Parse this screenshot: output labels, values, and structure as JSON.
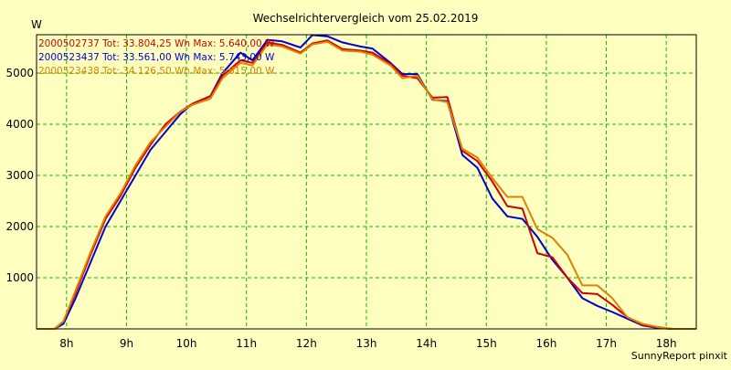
{
  "chart_data": {
    "type": "line",
    "title": "Wechselrichtervergleich vom 25.02.2019",
    "ylabel": "W",
    "xlabel": "",
    "xlim": [
      7.5,
      18.5
    ],
    "ylim": [
      0,
      5750
    ],
    "x_ticks": [
      8,
      9,
      10,
      11,
      12,
      13,
      14,
      15,
      16,
      17,
      18
    ],
    "x_tick_labels": [
      "8h",
      "9h",
      "10h",
      "11h",
      "12h",
      "13h",
      "14h",
      "15h",
      "16h",
      "17h",
      "18h"
    ],
    "y_ticks": [
      1000,
      2000,
      3000,
      4000,
      5000
    ],
    "y_tick_labels": [
      "1000",
      "2000",
      "3000",
      "4000",
      "5000"
    ],
    "grid": true,
    "legend_position": "top-left",
    "footer": "SunnyReport pinxit",
    "series": [
      {
        "name": "2000502737 Tot: 33.804,25 Wh Max: 5.640,00 W",
        "color": "#d00000",
        "x": [
          7.5,
          7.8,
          7.95,
          8.15,
          8.4,
          8.65,
          8.9,
          9.15,
          9.4,
          9.65,
          9.9,
          10.1,
          10.4,
          10.6,
          10.9,
          11.1,
          11.35,
          11.6,
          11.9,
          12.1,
          12.35,
          12.6,
          12.9,
          13.1,
          13.4,
          13.6,
          13.85,
          14.1,
          14.35,
          14.6,
          14.85,
          15.1,
          15.35,
          15.6,
          15.85,
          16.1,
          16.35,
          16.6,
          16.85,
          17.1,
          17.35,
          17.6,
          17.85,
          18.1,
          18.3,
          18.5
        ],
        "y": [
          0,
          0,
          150,
          700,
          1450,
          2150,
          2600,
          3150,
          3600,
          4000,
          4250,
          4400,
          4550,
          4950,
          5250,
          5200,
          5600,
          5550,
          5400,
          5580,
          5640,
          5470,
          5440,
          5400,
          5180,
          4950,
          4900,
          4520,
          4530,
          3480,
          3280,
          2880,
          2400,
          2350,
          1480,
          1400,
          1000,
          700,
          680,
          470,
          230,
          80,
          30,
          0,
          0,
          0
        ]
      },
      {
        "name": "2000523437 Tot: 33.561,00 Wh Max: 5.743,00 W",
        "color": "#0000d0",
        "x": [
          7.5,
          7.8,
          7.95,
          8.15,
          8.4,
          8.65,
          8.9,
          9.15,
          9.4,
          9.65,
          9.9,
          10.1,
          10.4,
          10.6,
          10.9,
          11.1,
          11.35,
          11.6,
          11.9,
          12.1,
          12.35,
          12.6,
          12.9,
          13.1,
          13.4,
          13.6,
          13.85,
          14.1,
          14.35,
          14.6,
          14.85,
          15.1,
          15.35,
          15.6,
          15.85,
          16.1,
          16.35,
          16.6,
          16.85,
          17.1,
          17.35,
          17.6,
          17.85,
          18.1,
          18.3,
          18.5
        ],
        "y": [
          0,
          0,
          100,
          600,
          1300,
          2000,
          2500,
          3000,
          3500,
          3850,
          4200,
          4400,
          4550,
          5000,
          5400,
          5250,
          5650,
          5620,
          5500,
          5743,
          5720,
          5600,
          5520,
          5480,
          5200,
          4980,
          4980,
          4480,
          4450,
          3400,
          3150,
          2550,
          2200,
          2150,
          1800,
          1350,
          1000,
          600,
          450,
          330,
          200,
          70,
          20,
          0,
          0,
          0
        ]
      },
      {
        "name": "2000523438 Tot: 34.126,50 Wh Max: 5.615,00 W",
        "color": "#e08000",
        "x": [
          7.5,
          7.8,
          7.95,
          8.15,
          8.4,
          8.65,
          8.9,
          9.15,
          9.4,
          9.65,
          9.9,
          10.1,
          10.4,
          10.6,
          10.9,
          11.1,
          11.35,
          11.6,
          11.9,
          12.1,
          12.35,
          12.6,
          12.9,
          13.1,
          13.4,
          13.6,
          13.85,
          14.1,
          14.35,
          14.6,
          14.85,
          15.1,
          15.35,
          15.6,
          15.85,
          16.1,
          16.35,
          16.6,
          16.85,
          17.1,
          17.35,
          17.6,
          17.85,
          18.1,
          18.3,
          18.5
        ],
        "y": [
          0,
          0,
          150,
          750,
          1500,
          2200,
          2650,
          3200,
          3650,
          3950,
          4250,
          4380,
          4500,
          4900,
          5200,
          5150,
          5560,
          5520,
          5380,
          5560,
          5615,
          5440,
          5420,
          5360,
          5150,
          4900,
          4950,
          4490,
          4430,
          3520,
          3350,
          2950,
          2580,
          2580,
          1950,
          1780,
          1450,
          850,
          850,
          600,
          230,
          100,
          40,
          0,
          0,
          0
        ]
      }
    ]
  }
}
